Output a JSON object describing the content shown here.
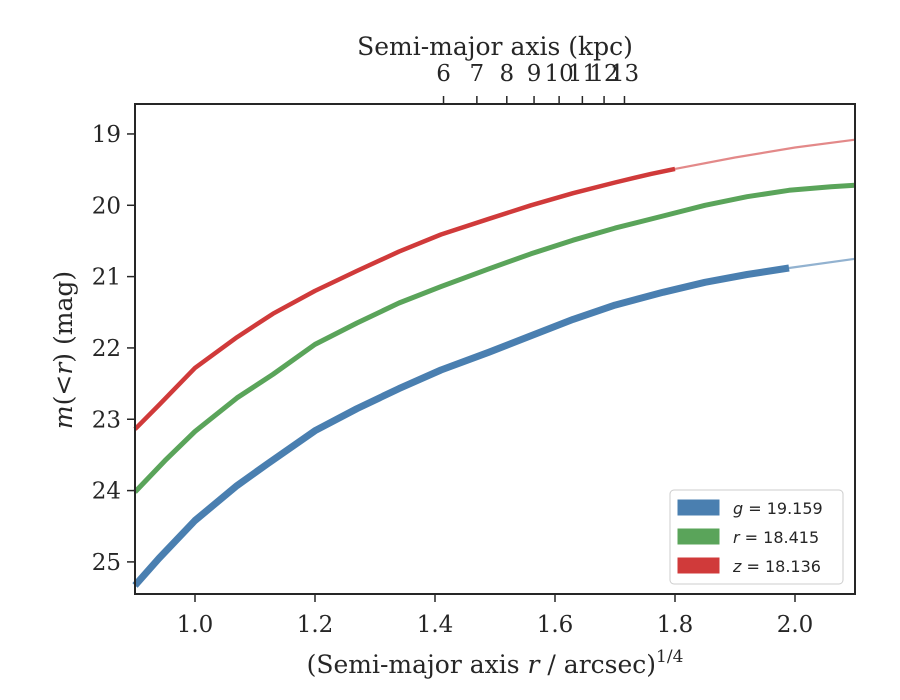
{
  "chart_data": {
    "type": "line",
    "xlabel_prefix": "(Semi-major axis ",
    "xlabel_var": "r",
    "xlabel_suffix": " / arcsec)",
    "xlabel_sup": "1/4",
    "ylabel_m": "m",
    "ylabel_mid": "(<",
    "ylabel_r": "r",
    "ylabel_end": ") (mag)",
    "top_xlabel": "Semi-major axis (kpc)",
    "xlim": [
      0.9,
      2.1
    ],
    "ylim": [
      25.45,
      18.58
    ],
    "y_inverted": true,
    "x_ticks": [
      "1.0",
      "1.2",
      "1.4",
      "1.6",
      "1.8",
      "2.0"
    ],
    "y_ticks": [
      "19",
      "20",
      "21",
      "22",
      "23",
      "24",
      "25"
    ],
    "top_ticks": [
      "6",
      "7",
      "8",
      "9",
      "10",
      "11",
      "12",
      "13"
    ],
    "grid": false,
    "legend_position": "lower-right",
    "series": [
      {
        "name": "g = 19.159",
        "band": "g",
        "mag": "19.159",
        "color": "#4a7fb0",
        "measured_until": 1.99,
        "x": [
          0.9,
          0.94,
          1.0,
          1.07,
          1.12,
          1.2,
          1.27,
          1.34,
          1.41,
          1.49,
          1.56,
          1.63,
          1.7,
          1.78,
          1.85,
          1.92,
          1.99,
          2.1
        ],
        "y": [
          25.33,
          24.95,
          24.42,
          23.93,
          23.63,
          23.16,
          22.85,
          22.57,
          22.31,
          22.06,
          21.83,
          21.6,
          21.4,
          21.22,
          21.08,
          20.97,
          20.88,
          20.75
        ]
      },
      {
        "name": "r = 18.415",
        "band": "r",
        "mag": "18.415",
        "color": "#5aa45a",
        "measured_until": 2.1,
        "x": [
          0.9,
          0.95,
          1.0,
          1.07,
          1.13,
          1.2,
          1.27,
          1.34,
          1.41,
          1.49,
          1.56,
          1.63,
          1.7,
          1.78,
          1.85,
          1.92,
          1.99,
          2.06,
          2.1
        ],
        "y": [
          24.02,
          23.58,
          23.17,
          22.7,
          22.37,
          21.95,
          21.65,
          21.37,
          21.14,
          20.89,
          20.68,
          20.49,
          20.32,
          20.15,
          20.0,
          19.88,
          19.79,
          19.74,
          19.72
        ]
      },
      {
        "name": "z = 18.136",
        "band": "z",
        "mag": "18.136",
        "color": "#d03a3a",
        "measured_until": 1.8,
        "x": [
          0.9,
          0.94,
          1.0,
          1.07,
          1.13,
          1.2,
          1.27,
          1.34,
          1.41,
          1.49,
          1.56,
          1.63,
          1.7,
          1.76,
          1.8,
          1.9,
          2.0,
          2.1
        ],
        "y": [
          23.14,
          22.8,
          22.28,
          21.85,
          21.52,
          21.2,
          20.92,
          20.65,
          20.41,
          20.19,
          20.0,
          19.83,
          19.68,
          19.56,
          19.49,
          19.33,
          19.19,
          19.08
        ]
      }
    ]
  }
}
